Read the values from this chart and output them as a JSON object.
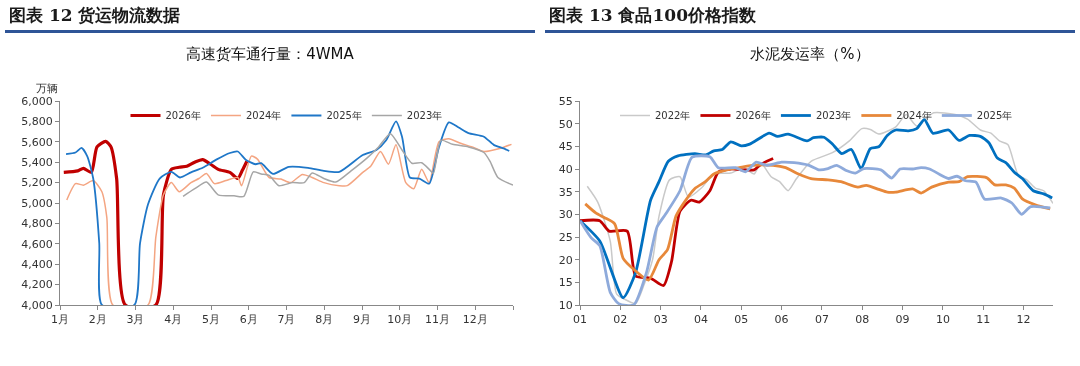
{
  "chart_data": [
    {
      "type": "line",
      "title": "图表 12 货运物流数据",
      "subtitle": "高速货车通行量：4WMA",
      "ylabel": "万辆",
      "legend": "top",
      "grid": false,
      "marker": "none",
      "line_style": "solid",
      "xlim": [
        1,
        13
      ],
      "xticks": [
        {
          "value": 1,
          "label": "1月"
        },
        {
          "value": 2,
          "label": "2月"
        },
        {
          "value": 3,
          "label": "3月"
        },
        {
          "value": 4,
          "label": "4月"
        },
        {
          "value": 5,
          "label": "5月"
        },
        {
          "value": 6,
          "label": "6月"
        },
        {
          "value": 7,
          "label": "7月"
        },
        {
          "value": 8,
          "label": "8月"
        },
        {
          "value": 9,
          "label": "9月"
        },
        {
          "value": 10,
          "label": "10月"
        },
        {
          "value": 11,
          "label": "11月"
        },
        {
          "value": 12,
          "label": "12月"
        },
        {
          "value": 13,
          "label": null
        }
      ],
      "ylim": [
        4000,
        6000
      ],
      "yticks": [
        {
          "value": 4000,
          "label": "4,000"
        },
        {
          "value": 4200,
          "label": "4,200"
        },
        {
          "value": 4400,
          "label": "4,400"
        },
        {
          "value": 4600,
          "label": "4,600"
        },
        {
          "value": 4800,
          "label": "4,800"
        },
        {
          "value": 5000,
          "label": "5,000"
        },
        {
          "value": 5200,
          "label": "5,200"
        },
        {
          "value": 5400,
          "label": "5,400"
        },
        {
          "value": 5600,
          "label": "5,600"
        },
        {
          "value": 5800,
          "label": "5,800"
        },
        {
          "value": 6000,
          "label": "6,000"
        }
      ],
      "series": [
        {
          "name": "2026年",
          "color": "#c00000",
          "x": [
            1.1,
            1.47,
            1.62,
            1.83,
            1.98,
            2.21,
            2.35,
            2.5,
            2.73,
            3.54,
            3.74,
            3.95,
            4.16,
            4.36,
            4.57,
            4.78,
            4.99,
            5.19,
            5.5,
            5.71,
            5.83,
            5.95
          ],
          "values": [
            5300,
            5315,
            5340,
            5300,
            5550,
            5605,
            5550,
            5240,
            4000,
            4000,
            5080,
            5330,
            5350,
            5360,
            5400,
            5425,
            5380,
            5330,
            5300,
            5240,
            5320,
            5410
          ]
        },
        {
          "name": "2024年",
          "color": "#f4a582",
          "x": [
            1.18,
            1.41,
            1.62,
            1.88,
            2.11,
            2.24,
            2.4,
            3.33,
            3.54,
            3.74,
            3.95,
            4.16,
            4.47,
            4.68,
            4.88,
            5.09,
            5.4,
            5.71,
            5.81,
            6.07,
            6.23,
            6.54,
            6.85,
            7.11,
            7.42,
            7.68,
            7.99,
            8.4,
            8.61,
            9.02,
            9.23,
            9.49,
            9.7,
            9.9,
            10.16,
            10.37,
            10.58,
            10.78,
            11.04,
            11.3,
            11.61,
            11.92,
            12.23,
            12.65,
            12.96
          ],
          "values": [
            5030,
            5190,
            5175,
            5220,
            5110,
            4860,
            4000,
            4000,
            4670,
            5080,
            5200,
            5110,
            5200,
            5240,
            5290,
            5190,
            5220,
            5250,
            5170,
            5460,
            5430,
            5250,
            5235,
            5200,
            5280,
            5250,
            5200,
            5170,
            5170,
            5300,
            5360,
            5505,
            5380,
            5570,
            5200,
            5140,
            5330,
            5200,
            5600,
            5630,
            5585,
            5550,
            5505,
            5535,
            5575
          ]
        },
        {
          "name": "2025年",
          "color": "#1f77c8",
          "x": [
            1.16,
            1.41,
            1.57,
            1.72,
            1.88,
            2.04,
            2.11,
            2.97,
            3.12,
            3.33,
            3.64,
            3.95,
            4.18,
            4.47,
            4.78,
            5.14,
            5.5,
            5.71,
            5.92,
            6.18,
            6.33,
            6.64,
            7.06,
            7.57,
            7.99,
            8.4,
            9.02,
            9.38,
            9.64,
            9.9,
            10.06,
            10.27,
            10.52,
            10.78,
            11.04,
            11.3,
            11.56,
            11.82,
            12.23,
            12.49,
            12.75,
            12.9
          ],
          "values": [
            5480,
            5495,
            5540,
            5460,
            5240,
            4605,
            4000,
            4000,
            4605,
            4985,
            5240,
            5305,
            5250,
            5300,
            5345,
            5425,
            5490,
            5505,
            5425,
            5380,
            5390,
            5285,
            5355,
            5345,
            5315,
            5305,
            5470,
            5520,
            5615,
            5800,
            5650,
            5250,
            5240,
            5190,
            5550,
            5790,
            5740,
            5685,
            5650,
            5570,
            5535,
            5510
          ]
        },
        {
          "name": "2023年",
          "color": "#a6a6a6",
          "x": [
            4.26,
            4.57,
            4.88,
            5.19,
            5.61,
            5.87,
            6.12,
            6.33,
            6.54,
            6.8,
            7.16,
            7.47,
            7.68,
            7.99,
            8.3,
            8.71,
            9.13,
            9.44,
            9.75,
            10.06,
            10.32,
            10.58,
            10.78,
            10.89,
            11.09,
            11.4,
            11.82,
            12.23,
            12.39,
            12.6,
            13.0
          ],
          "values": [
            5065,
            5140,
            5205,
            5080,
            5070,
            5065,
            5305,
            5285,
            5270,
            5170,
            5200,
            5200,
            5295,
            5240,
            5205,
            5315,
            5440,
            5550,
            5680,
            5520,
            5390,
            5395,
            5330,
            5290,
            5615,
            5575,
            5550,
            5495,
            5410,
            5250,
            5175
          ]
        }
      ]
    },
    {
      "type": "line",
      "title": "图表 13 食品100价格指数",
      "subtitle": "水泥发运率（%）",
      "legend": "top",
      "grid": false,
      "marker": "none",
      "line_style": "solid",
      "xlim": [
        1,
        12.73
      ],
      "xticks": [
        {
          "value": 1,
          "label": "01"
        },
        {
          "value": 2,
          "label": "02"
        },
        {
          "value": 3,
          "label": "03"
        },
        {
          "value": 4,
          "label": "04"
        },
        {
          "value": 5,
          "label": "05"
        },
        {
          "value": 6,
          "label": "06"
        },
        {
          "value": 7,
          "label": "07"
        },
        {
          "value": 8,
          "label": "08"
        },
        {
          "value": 9,
          "label": "09"
        },
        {
          "value": 10,
          "label": "10"
        },
        {
          "value": 11,
          "label": "11"
        },
        {
          "value": 12,
          "label": "12"
        }
      ],
      "ylim": [
        10,
        55
      ],
      "yticks": [
        10,
        15,
        20,
        25,
        30,
        35,
        40,
        45,
        50,
        55
      ],
      "series": [
        {
          "name": "2022年",
          "color": "#c9c9c9",
          "x": [
            1.18,
            1.44,
            1.75,
            1.91,
            2.17,
            2.38,
            2.59,
            2.8,
            2.96,
            3.22,
            3.48,
            3.69,
            4.01,
            4.32,
            4.74,
            5.06,
            5.32,
            5.48,
            5.74,
            5.95,
            6.16,
            6.37,
            6.73,
            7.26,
            7.68,
            7.99,
            8.2,
            8.41,
            8.83,
            9.09,
            9.35,
            9.77,
            10.3,
            10.61,
            10.93,
            11.19,
            11.4,
            11.61,
            11.87,
            12.08,
            12.29,
            12.5,
            12.73
          ],
          "values": [
            36.2,
            32.7,
            24.1,
            12.4,
            11.0,
            10.3,
            14.5,
            20.0,
            29.6,
            37.6,
            38.3,
            33.8,
            35.8,
            38.9,
            39.1,
            40.3,
            38.9,
            41.4,
            38.3,
            37.2,
            35.2,
            37.9,
            41.7,
            43.6,
            46.2,
            48.9,
            48.7,
            47.7,
            49.3,
            52.0,
            49.5,
            52.4,
            52.0,
            51.0,
            48.6,
            47.9,
            46.2,
            45.4,
            38.6,
            37.6,
            35.8,
            35.2,
            32.4
          ]
        },
        {
          "name": "2026年",
          "color": "#c00000",
          "x": [
            1.0,
            1.49,
            1.72,
            2.17,
            2.38,
            2.75,
            3.07,
            3.27,
            3.48,
            3.75,
            3.96,
            4.22,
            4.43,
            4.74,
            5.06,
            5.32,
            5.48,
            5.79
          ],
          "values": [
            28.6,
            28.6,
            26.3,
            26.3,
            16.4,
            15.9,
            14.3,
            19.6,
            30.7,
            33.1,
            32.7,
            35.2,
            39.3,
            40.0,
            39.8,
            39.8,
            41.0,
            42.3
          ]
        },
        {
          "name": "2023年",
          "color": "#0070c0",
          "x": [
            1.0,
            1.49,
            2.07,
            2.38,
            2.75,
            2.96,
            3.19,
            3.43,
            3.85,
            4.11,
            4.32,
            4.53,
            4.74,
            5.0,
            5.21,
            5.69,
            5.9,
            6.16,
            6.63,
            6.79,
            7.05,
            7.26,
            7.49,
            7.73,
            7.97,
            8.2,
            8.41,
            8.62,
            8.83,
            9.14,
            9.35,
            9.54,
            9.75,
            10.14,
            10.4,
            10.66,
            10.93,
            11.14,
            11.35,
            11.56,
            11.77,
            11.97,
            12.24,
            12.5,
            12.71
          ],
          "values": [
            28.6,
            24.1,
            11.6,
            17.2,
            33.1,
            37.2,
            41.7,
            42.9,
            43.4,
            43.1,
            44.0,
            44.3,
            46.0,
            45.1,
            45.5,
            47.9,
            47.2,
            47.7,
            46.2,
            46.9,
            47.0,
            45.5,
            43.4,
            44.3,
            40.1,
            44.5,
            44.9,
            47.4,
            48.6,
            48.4,
            48.9,
            50.9,
            47.9,
            48.6,
            46.3,
            47.4,
            47.2,
            45.8,
            42.4,
            41.4,
            39.3,
            37.9,
            35.2,
            34.5,
            33.6
          ]
        },
        {
          "name": "2024年",
          "color": "#e7883a",
          "x": [
            1.13,
            1.39,
            1.6,
            1.86,
            2.07,
            2.33,
            2.7,
            2.96,
            3.17,
            3.38,
            3.59,
            3.85,
            4.11,
            4.32,
            4.64,
            4.95,
            5.27,
            5.79,
            6.1,
            6.42,
            6.73,
            7.15,
            7.47,
            7.89,
            8.1,
            8.41,
            8.62,
            8.83,
            9.25,
            9.46,
            9.72,
            10.14,
            10.4,
            10.61,
            11.08,
            11.29,
            11.56,
            11.77,
            11.97,
            12.29,
            12.66
          ],
          "values": [
            32.3,
            30.3,
            29.3,
            27.9,
            20.3,
            17.9,
            15.5,
            20.0,
            22.2,
            29.6,
            32.7,
            35.7,
            37.2,
            38.9,
            39.8,
            40.3,
            40.8,
            40.8,
            40.3,
            38.9,
            37.9,
            37.6,
            37.2,
            36.0,
            36.4,
            35.5,
            34.9,
            34.9,
            35.6,
            34.7,
            36.0,
            37.1,
            37.2,
            38.3,
            38.1,
            36.5,
            36.5,
            35.8,
            33.4,
            32.1,
            31.2
          ]
        },
        {
          "name": "2025年",
          "color": "#8eaadb",
          "x": [
            1.0,
            1.28,
            1.49,
            1.75,
            1.96,
            2.33,
            2.65,
            2.91,
            3.12,
            3.48,
            3.78,
            4.22,
            4.43,
            4.85,
            5.11,
            5.37,
            5.63,
            6.0,
            6.31,
            6.68,
            6.94,
            7.15,
            7.36,
            7.62,
            7.83,
            8.04,
            8.46,
            8.73,
            8.94,
            9.25,
            9.46,
            9.67,
            9.98,
            10.14,
            10.35,
            10.56,
            10.82,
            11.03,
            11.45,
            11.71,
            11.95,
            12.18,
            12.66
          ],
          "values": [
            28.6,
            24.8,
            23.1,
            12.8,
            10.3,
            10.0,
            17.2,
            27.2,
            30.0,
            35.2,
            42.6,
            42.7,
            40.3,
            40.3,
            39.4,
            41.5,
            40.8,
            41.5,
            41.4,
            40.8,
            39.8,
            40.1,
            40.8,
            39.6,
            39.1,
            40.1,
            39.8,
            38.0,
            40.0,
            40.0,
            40.3,
            40.0,
            38.5,
            37.9,
            38.4,
            37.4,
            37.1,
            33.4,
            33.6,
            32.5,
            30.0,
            31.7,
            31.4
          ]
        }
      ]
    }
  ]
}
